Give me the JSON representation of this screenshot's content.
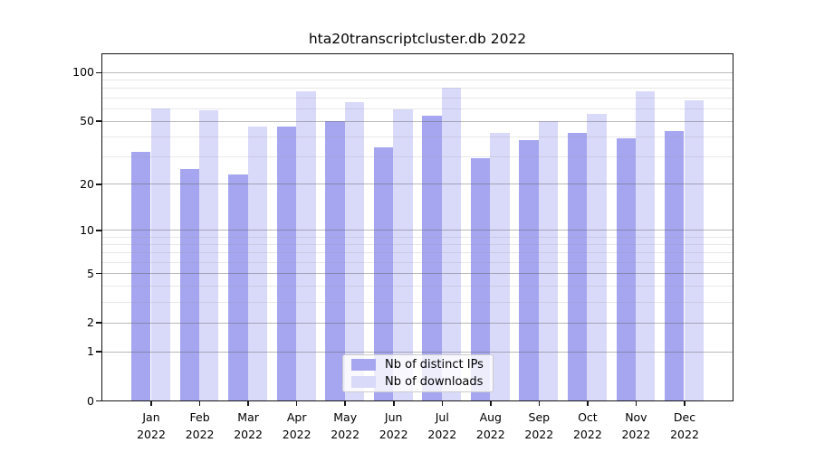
{
  "chart_data": {
    "type": "bar",
    "title": "hta20transcriptcluster.db 2022",
    "categories": [
      "Jan",
      "Feb",
      "Mar",
      "Apr",
      "May",
      "Jun",
      "Jul",
      "Aug",
      "Sep",
      "Oct",
      "Nov",
      "Dec"
    ],
    "year": "2022",
    "series": [
      {
        "name": "Nb of distinct IPs",
        "color": "#a6a6f0",
        "values": [
          32,
          25,
          23,
          46,
          50,
          34,
          54,
          29,
          38,
          42,
          39,
          43
        ]
      },
      {
        "name": "Nb of downloads",
        "color": "#d9d9fa",
        "values": [
          60,
          58,
          46,
          76,
          65,
          59,
          80,
          42,
          50,
          55,
          76,
          67
        ]
      }
    ],
    "yscale": "log1p",
    "ylim": [
      0,
      129
    ],
    "y_ticks": [
      0,
      1,
      2,
      5,
      10,
      20,
      50,
      100
    ],
    "y_minor_gridlines": [
      3,
      4,
      6,
      7,
      8,
      9,
      30,
      40,
      60,
      70,
      80,
      90
    ],
    "grid": "horizontal, major and minor, drawn above bars",
    "legend_position": "lower center",
    "bar_width_fraction": 0.4
  }
}
